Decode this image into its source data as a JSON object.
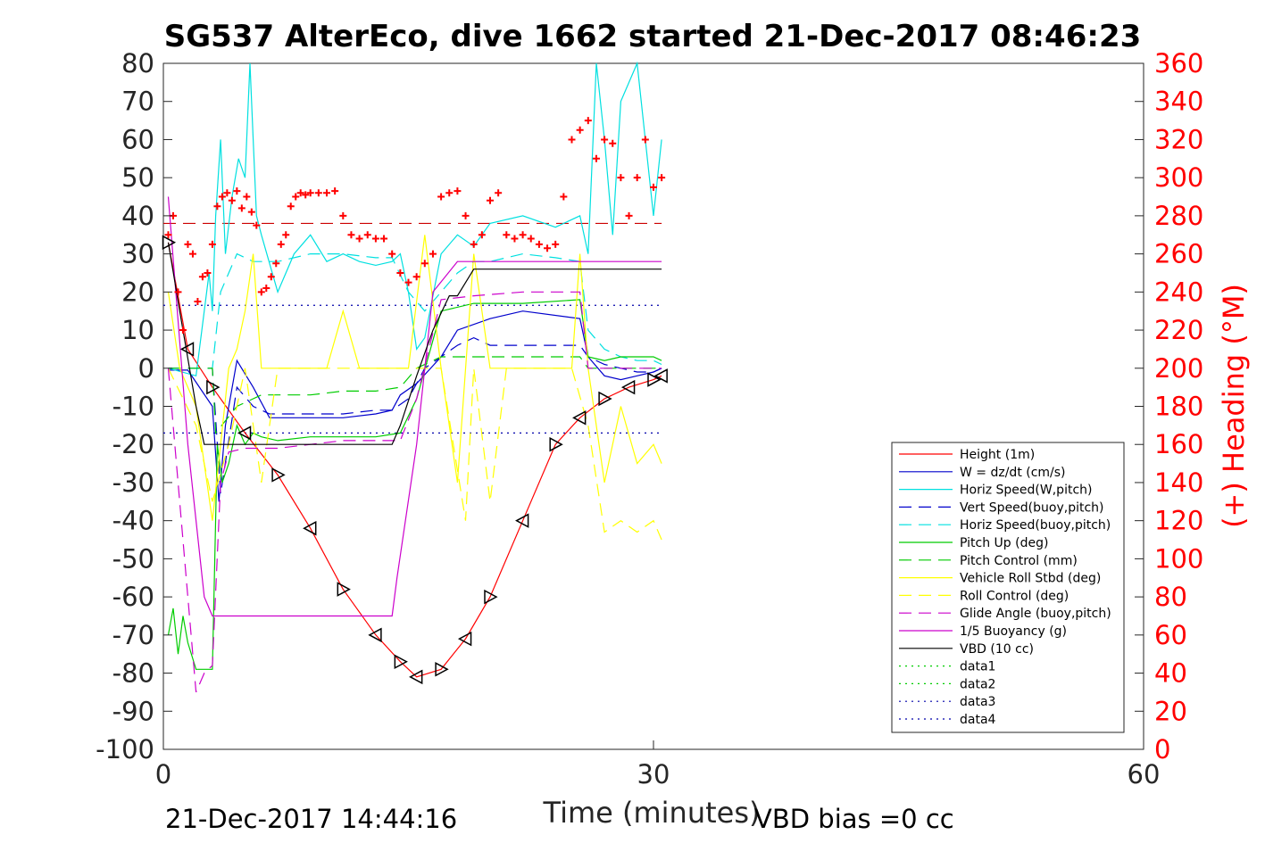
{
  "chart_data": {
    "type": "line",
    "title": "SG537 AlterEco, dive 1662 started 21-Dec-2017 08:46:23",
    "xlabel": "Time (minutes)",
    "ylabel_right": "(+) Heading (°M)",
    "xlim": [
      0,
      60
    ],
    "ylim_left": [
      -100,
      80
    ],
    "ylim_right": [
      0,
      360
    ],
    "x_ticks": [
      "0",
      "30",
      "60"
    ],
    "y_ticks_left": [
      "80",
      "70",
      "60",
      "50",
      "40",
      "30",
      "20",
      "10",
      "0",
      "-10",
      "-20",
      "-30",
      "-40",
      "-50",
      "-60",
      "-70",
      "-80",
      "-90",
      "-100"
    ],
    "y_ticks_right": [
      "360",
      "340",
      "320",
      "300",
      "280",
      "260",
      "240",
      "220",
      "200",
      "180",
      "160",
      "140",
      "120",
      "100",
      "80",
      "60",
      "40",
      "20",
      "0"
    ],
    "footer_left": "21-Dec-2017 14:44:16",
    "footer_right": "VBD bias =0 cc",
    "legend": [
      {
        "name": "Height (1m)",
        "color": "#ff0000",
        "dash": "solid"
      },
      {
        "name": "W = dz/dt (cm/s)",
        "color": "#0000cc",
        "dash": "solid"
      },
      {
        "name": "Horiz Speed(W,pitch)",
        "color": "#00e0e0",
        "dash": "solid"
      },
      {
        "name": "Vert Speed(buoy,pitch)",
        "color": "#0000cc",
        "dash": "dashed"
      },
      {
        "name": "Horiz Speed(buoy,pitch)",
        "color": "#00e0e0",
        "dash": "dashed"
      },
      {
        "name": "Pitch Up (deg)",
        "color": "#00cc00",
        "dash": "solid"
      },
      {
        "name": "Pitch Control (mm)",
        "color": "#00cc00",
        "dash": "dashed"
      },
      {
        "name": "Vehicle Roll Stbd (deg)",
        "color": "#ffff00",
        "dash": "solid"
      },
      {
        "name": "Roll Control (deg)",
        "color": "#ffff00",
        "dash": "dashed"
      },
      {
        "name": "Glide Angle (buoy,pitch)",
        "color": "#cc00cc",
        "dash": "dashed"
      },
      {
        "name": "1/5 Buoyancy (g)",
        "color": "#cc00cc",
        "dash": "solid"
      },
      {
        "name": "VBD (10 cc)",
        "color": "#000000",
        "dash": "solid"
      },
      {
        "name": "data1",
        "color": "#00cc00",
        "dash": "dotted"
      },
      {
        "name": "data2",
        "color": "#00cc00",
        "dash": "dotted"
      },
      {
        "name": "data3",
        "color": "#0000aa",
        "dash": "dotted"
      },
      {
        "name": "data4",
        "color": "#0000aa",
        "dash": "dotted"
      }
    ],
    "series": [
      {
        "name": "Height (1m)",
        "x": [
          0.3,
          1.5,
          3,
          5,
          7,
          9,
          11,
          13,
          14.5,
          15.5,
          17,
          18.5,
          20,
          22,
          24,
          25.5,
          27,
          28.5,
          30,
          30.5
        ],
        "y": [
          33,
          5,
          -5,
          -17,
          -28,
          -42,
          -58,
          -70,
          -77,
          -81,
          -79,
          -71,
          -60,
          -40,
          -20,
          -13,
          -8,
          -5,
          -3,
          -2
        ]
      },
      {
        "name": "W = dz/dt (cm/s)",
        "x": [
          0.3,
          1.5,
          3,
          3.4,
          3.8,
          4.5,
          5.5,
          6.5,
          9,
          11,
          13,
          14,
          14.5,
          15.5,
          17,
          18,
          20,
          22,
          25.5,
          26,
          27,
          28,
          29,
          30,
          30.5
        ],
        "y": [
          -0.5,
          -0.5,
          -10,
          -35,
          -15,
          2,
          -5,
          -13,
          -13,
          -13,
          -12,
          -11,
          -7,
          -4,
          3,
          10,
          13,
          15,
          13,
          3,
          -2,
          -3,
          -2,
          -1,
          0
        ]
      },
      {
        "name": "Horiz Speed(W,pitch)",
        "x": [
          0.3,
          2,
          2.8,
          3,
          3.2,
          3.5,
          3.8,
          4.2,
          4.6,
          5,
          5.3,
          5.5,
          5.7,
          6,
          7,
          8,
          9,
          10,
          11,
          12,
          13,
          14,
          14.5,
          15,
          15.5,
          16,
          17,
          18,
          19,
          20,
          22,
          24,
          25.5,
          26,
          26.5,
          27,
          27.5,
          28,
          29,
          30,
          30.5
        ],
        "y": [
          0,
          -2,
          25,
          15,
          40,
          60,
          30,
          45,
          55,
          50,
          80,
          60,
          40,
          35,
          20,
          30,
          35,
          28,
          30,
          28,
          27,
          28,
          30,
          20,
          5,
          8,
          30,
          35,
          32,
          38,
          40,
          37,
          40,
          30,
          80,
          60,
          35,
          70,
          80,
          40,
          60
        ]
      },
      {
        "name": "Vert Speed(buoy,pitch)",
        "x": [
          0.3,
          3,
          3.5,
          4.5,
          5.5,
          6.5,
          9,
          11,
          13,
          14,
          15,
          16,
          17,
          18,
          19,
          20,
          22,
          24,
          25.5,
          26,
          27,
          28,
          29,
          30,
          30.5
        ],
        "y": [
          0,
          0,
          -33,
          -5,
          -10,
          -12,
          -12,
          -12,
          -11,
          -11,
          -8,
          0,
          3,
          6,
          8,
          6,
          6,
          6,
          6,
          3,
          1,
          0,
          -1,
          -1,
          0
        ]
      },
      {
        "name": "Horiz Speed(buoy,pitch)",
        "x": [
          0.3,
          3,
          3.5,
          4.5,
          5.5,
          7,
          9,
          11,
          13,
          14,
          15,
          16,
          17,
          18,
          19,
          20,
          22,
          24,
          25.5,
          26,
          27,
          28,
          29,
          30,
          30.5
        ],
        "y": [
          0,
          0,
          20,
          30,
          28,
          28,
          30,
          30,
          29,
          29,
          20,
          15,
          20,
          25,
          28,
          28,
          30,
          29,
          28,
          10,
          5,
          3,
          2,
          2,
          1
        ]
      },
      {
        "name": "Pitch Up (deg)",
        "x": [
          0.3,
          0.6,
          0.9,
          1.2,
          1.5,
          2,
          2.5,
          3,
          3.3,
          3.6,
          4,
          4.5,
          5,
          5.5,
          6,
          7,
          9,
          11,
          13,
          14.5,
          15.5,
          17,
          19,
          22,
          25.5,
          26,
          27,
          28,
          29,
          30,
          30.5
        ],
        "y": [
          -70,
          -63,
          -75,
          -65,
          -72,
          -79,
          -79,
          -79,
          -20,
          -30,
          -25,
          -15,
          -20,
          -17,
          -18,
          -19,
          -18,
          -18,
          -18,
          -17,
          -8,
          15,
          17,
          17,
          18,
          3,
          2,
          3,
          3,
          3,
          2
        ]
      },
      {
        "name": "Pitch Control (mm)",
        "x": [
          0.3,
          3,
          3.2,
          4.5,
          6,
          9,
          11,
          13,
          14.5,
          15.5,
          17,
          19,
          22,
          25.5,
          26,
          28,
          30,
          30.5
        ],
        "y": [
          0,
          0,
          -17,
          -10,
          -7,
          -7,
          -6,
          -6,
          -5,
          0,
          3,
          3,
          3,
          3,
          0,
          0,
          0,
          0
        ]
      },
      {
        "name": "Vehicle Roll Stbd (deg)",
        "x": [
          0.3,
          1,
          2,
          3,
          3.5,
          4,
          4.5,
          5,
          5.5,
          6,
          7,
          8,
          9,
          10,
          11,
          12,
          13,
          14,
          15,
          16,
          17,
          18,
          19,
          20,
          21,
          22,
          23,
          24,
          25,
          25.5,
          26,
          27,
          28,
          29,
          30,
          30.5
        ],
        "y": [
          20,
          0,
          -10,
          -40,
          -20,
          0,
          5,
          15,
          30,
          0,
          0,
          0,
          0,
          0,
          15,
          0,
          0,
          0,
          0,
          35,
          0,
          -30,
          30,
          0,
          0,
          0,
          0,
          0,
          0,
          30,
          0,
          -30,
          -10,
          -25,
          -20,
          -25
        ]
      },
      {
        "name": "Roll Control (deg)",
        "x": [
          0.3,
          2,
          3,
          4,
          5,
          6,
          7,
          10,
          13,
          15,
          17,
          18.5,
          19,
          20,
          21,
          22,
          23,
          25,
          26,
          27,
          28,
          29,
          30,
          30.5
        ],
        "y": [
          0,
          -15,
          -35,
          -20,
          0,
          -30,
          0,
          0,
          0,
          0,
          0,
          -40,
          0,
          -35,
          0,
          0,
          0,
          0,
          -15,
          -43,
          -40,
          -43,
          -40,
          -45
        ]
      },
      {
        "name": "Glide Angle (buoy,pitch)",
        "x": [
          0.3,
          1.5,
          2,
          2.5,
          3,
          3.5,
          4,
          5,
          6,
          7,
          9,
          11,
          13,
          14.5,
          15.5,
          17,
          19,
          22,
          25.5,
          26,
          27,
          28,
          29,
          30,
          30.5
        ],
        "y": [
          0,
          -60,
          -85,
          -80,
          -78,
          -30,
          -22,
          -21,
          -21,
          -21,
          -20,
          -19,
          -19,
          -19,
          -8,
          18,
          19,
          20,
          20,
          0,
          0,
          0,
          0,
          0,
          0
        ]
      },
      {
        "name": "1/5 Buoyancy (g)",
        "x": [
          0.3,
          1.5,
          2.5,
          3,
          3.3,
          5,
          14,
          14.3,
          15.5,
          16.5,
          18,
          19,
          25,
          30.5
        ],
        "y": [
          45,
          -20,
          -60,
          -65,
          -65,
          -65,
          -65,
          -55,
          -20,
          20,
          28,
          28,
          28,
          28
        ]
      },
      {
        "name": "VBD (10 cc)",
        "x": [
          0.3,
          1,
          2,
          2.5,
          3,
          3.5,
          5,
          10,
          14,
          14.5,
          15.5,
          16.5,
          17.5,
          18,
          19,
          25,
          30.5
        ],
        "y": [
          33,
          15,
          -10,
          -20,
          -20,
          -20,
          -20,
          -20,
          -20,
          -15,
          -2,
          10,
          19,
          19,
          26,
          26,
          26
        ]
      }
    ],
    "heading_series": {
      "name": "(+) Heading (°M)",
      "color": "#ff0000",
      "x": [
        0.3,
        0.6,
        0.9,
        1.2,
        1.5,
        1.8,
        2.1,
        2.4,
        2.7,
        3,
        3.3,
        3.6,
        3.9,
        4.2,
        4.5,
        4.8,
        5.1,
        5.4,
        5.7,
        6,
        6.3,
        6.6,
        6.9,
        7.2,
        7.5,
        7.8,
        8.1,
        8.4,
        8.7,
        9,
        9.5,
        10,
        10.5,
        11,
        11.5,
        12,
        12.5,
        13,
        13.5,
        14,
        14.5,
        15,
        15.5,
        16,
        16.5,
        17,
        17.5,
        18,
        18.5,
        19,
        19.5,
        20,
        20.5,
        21,
        21.5,
        22,
        22.5,
        23,
        23.5,
        24,
        24.5,
        25,
        25.5,
        26,
        26.5,
        27,
        27.5,
        28,
        28.5,
        29,
        29.5,
        30,
        30.5
      ],
      "y": [
        270,
        280,
        240,
        220,
        265,
        260,
        235,
        248,
        250,
        265,
        285,
        290,
        292,
        288,
        293,
        284,
        290,
        282,
        275,
        240,
        242,
        248,
        255,
        265,
        270,
        285,
        290,
        292,
        291,
        292,
        292,
        292,
        293,
        280,
        270,
        268,
        270,
        268,
        268,
        260,
        250,
        245,
        248,
        255,
        260,
        290,
        292,
        293,
        280,
        265,
        270,
        288,
        292,
        270,
        268,
        270,
        268,
        265,
        263,
        265,
        290,
        320,
        325,
        330,
        310,
        320,
        318,
        300,
        280,
        300,
        320,
        295,
        300
      ]
    },
    "reference_lines": [
      {
        "y": 38,
        "axis": "left",
        "color": "#cc0000",
        "dash": "dashed"
      },
      {
        "y": 16.5,
        "axis": "left",
        "color": "#0000aa",
        "dash": "dotted"
      },
      {
        "y": -17,
        "axis": "left",
        "color": "#0000aa",
        "dash": "dotted"
      }
    ]
  }
}
